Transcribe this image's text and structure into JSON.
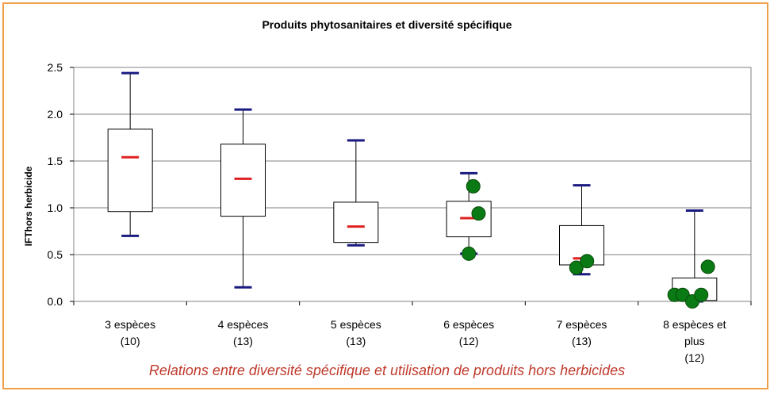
{
  "colors": {
    "frame": "#f0a04a",
    "caption": "#c0392b",
    "whisker_cap": "#1a1a80",
    "median": "#e02020",
    "point": "#0a7a14",
    "point_stroke": "#0a4a0a",
    "grid": "#808080"
  },
  "chart_data": {
    "type": "box",
    "title": "Produits phytosanitaires et diversité spécifique",
    "xlabel": "",
    "ylabel": "IFThors herbicide",
    "ylim": [
      0,
      2.5
    ],
    "yticks": [
      "0.0",
      "0.5",
      "1.0",
      "1.5",
      "2.0",
      "2.5"
    ],
    "ytick_values": [
      0,
      0.5,
      1.0,
      1.5,
      2.0,
      2.5
    ],
    "grid": true,
    "caption": "Relations entre diversité spécifique et utilisation de produits hors herbicides",
    "categories": [
      {
        "lines": [
          "3 espèces",
          "(10)"
        ],
        "min": 0.7,
        "q1": 0.96,
        "median": 1.54,
        "q3": 1.84,
        "max": 2.44,
        "points": []
      },
      {
        "lines": [
          "4 espèces",
          "(13)"
        ],
        "min": 0.15,
        "q1": 0.91,
        "median": 1.31,
        "q3": 1.68,
        "max": 2.05,
        "points": []
      },
      {
        "lines": [
          "5 espèces",
          "(13)"
        ],
        "min": 0.6,
        "q1": 0.63,
        "median": 0.8,
        "q3": 1.06,
        "max": 1.72,
        "points": []
      },
      {
        "lines": [
          "6 espèces",
          "(12)"
        ],
        "min": 0.51,
        "q1": 0.69,
        "median": 0.89,
        "q3": 1.07,
        "max": 1.37,
        "points": [
          {
            "dx": 0.1,
            "y": 1.23
          },
          {
            "dx": 0.22,
            "y": 0.94
          },
          {
            "dx": 0.0,
            "y": 0.51
          }
        ]
      },
      {
        "lines": [
          "7 espèces",
          "(13)"
        ],
        "min": 0.29,
        "q1": 0.39,
        "median": 0.46,
        "q3": 0.81,
        "max": 1.24,
        "points": [
          {
            "dx": -0.12,
            "y": 0.36
          },
          {
            "dx": 0.12,
            "y": 0.43
          }
        ]
      },
      {
        "lines": [
          "8 espèces et",
          "plus",
          "(12)"
        ],
        "min": 0.0,
        "q1": 0.01,
        "median": 0.01,
        "q3": 0.25,
        "max": 0.97,
        "points": [
          {
            "dx": -0.45,
            "y": 0.07
          },
          {
            "dx": -0.27,
            "y": 0.07
          },
          {
            "dx": -0.05,
            "y": 0.0
          },
          {
            "dx": 0.15,
            "y": 0.07
          },
          {
            "dx": 0.3,
            "y": 0.37
          }
        ]
      }
    ]
  }
}
